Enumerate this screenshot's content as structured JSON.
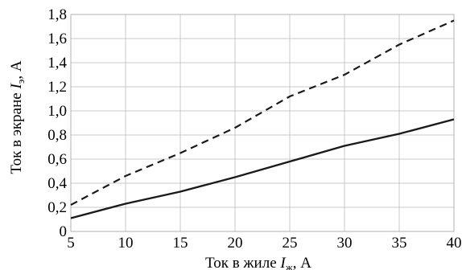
{
  "chart_data": {
    "type": "line",
    "xlabel": {
      "prefix": "Ток в жиле ",
      "symbol": "I",
      "subscript": "ж",
      "suffix": ", А"
    },
    "ylabel": {
      "prefix": "Ток в экране ",
      "symbol": "I",
      "subscript": "э",
      "suffix": ", А"
    },
    "xlim": [
      5,
      40
    ],
    "ylim": [
      0,
      1.8
    ],
    "grid": true,
    "x_ticks": [
      5,
      10,
      15,
      20,
      25,
      30,
      35,
      40
    ],
    "x_tick_labels": [
      "5",
      "10",
      "15",
      "20",
      "25",
      "30",
      "35",
      "40"
    ],
    "y_ticks": [
      0,
      0.2,
      0.4,
      0.6,
      0.8,
      1.0,
      1.2,
      1.4,
      1.6,
      1.8
    ],
    "y_tick_labels": [
      "0",
      "0,2",
      "0,4",
      "0,6",
      "0,8",
      "1,0",
      "1,2",
      "1,4",
      "1,6",
      "1,8"
    ],
    "series": [
      {
        "style": "solid",
        "color": "#1a1a1a",
        "x": [
          5,
          10,
          15,
          20,
          25,
          30,
          35,
          40
        ],
        "y": [
          0.11,
          0.23,
          0.33,
          0.45,
          0.58,
          0.71,
          0.81,
          0.93
        ]
      },
      {
        "style": "dashed",
        "color": "#1a1a1a",
        "x": [
          5,
          10,
          15,
          20,
          25,
          30,
          35,
          40
        ],
        "y": [
          0.22,
          0.46,
          0.65,
          0.86,
          1.12,
          1.3,
          1.55,
          1.75
        ]
      }
    ]
  }
}
